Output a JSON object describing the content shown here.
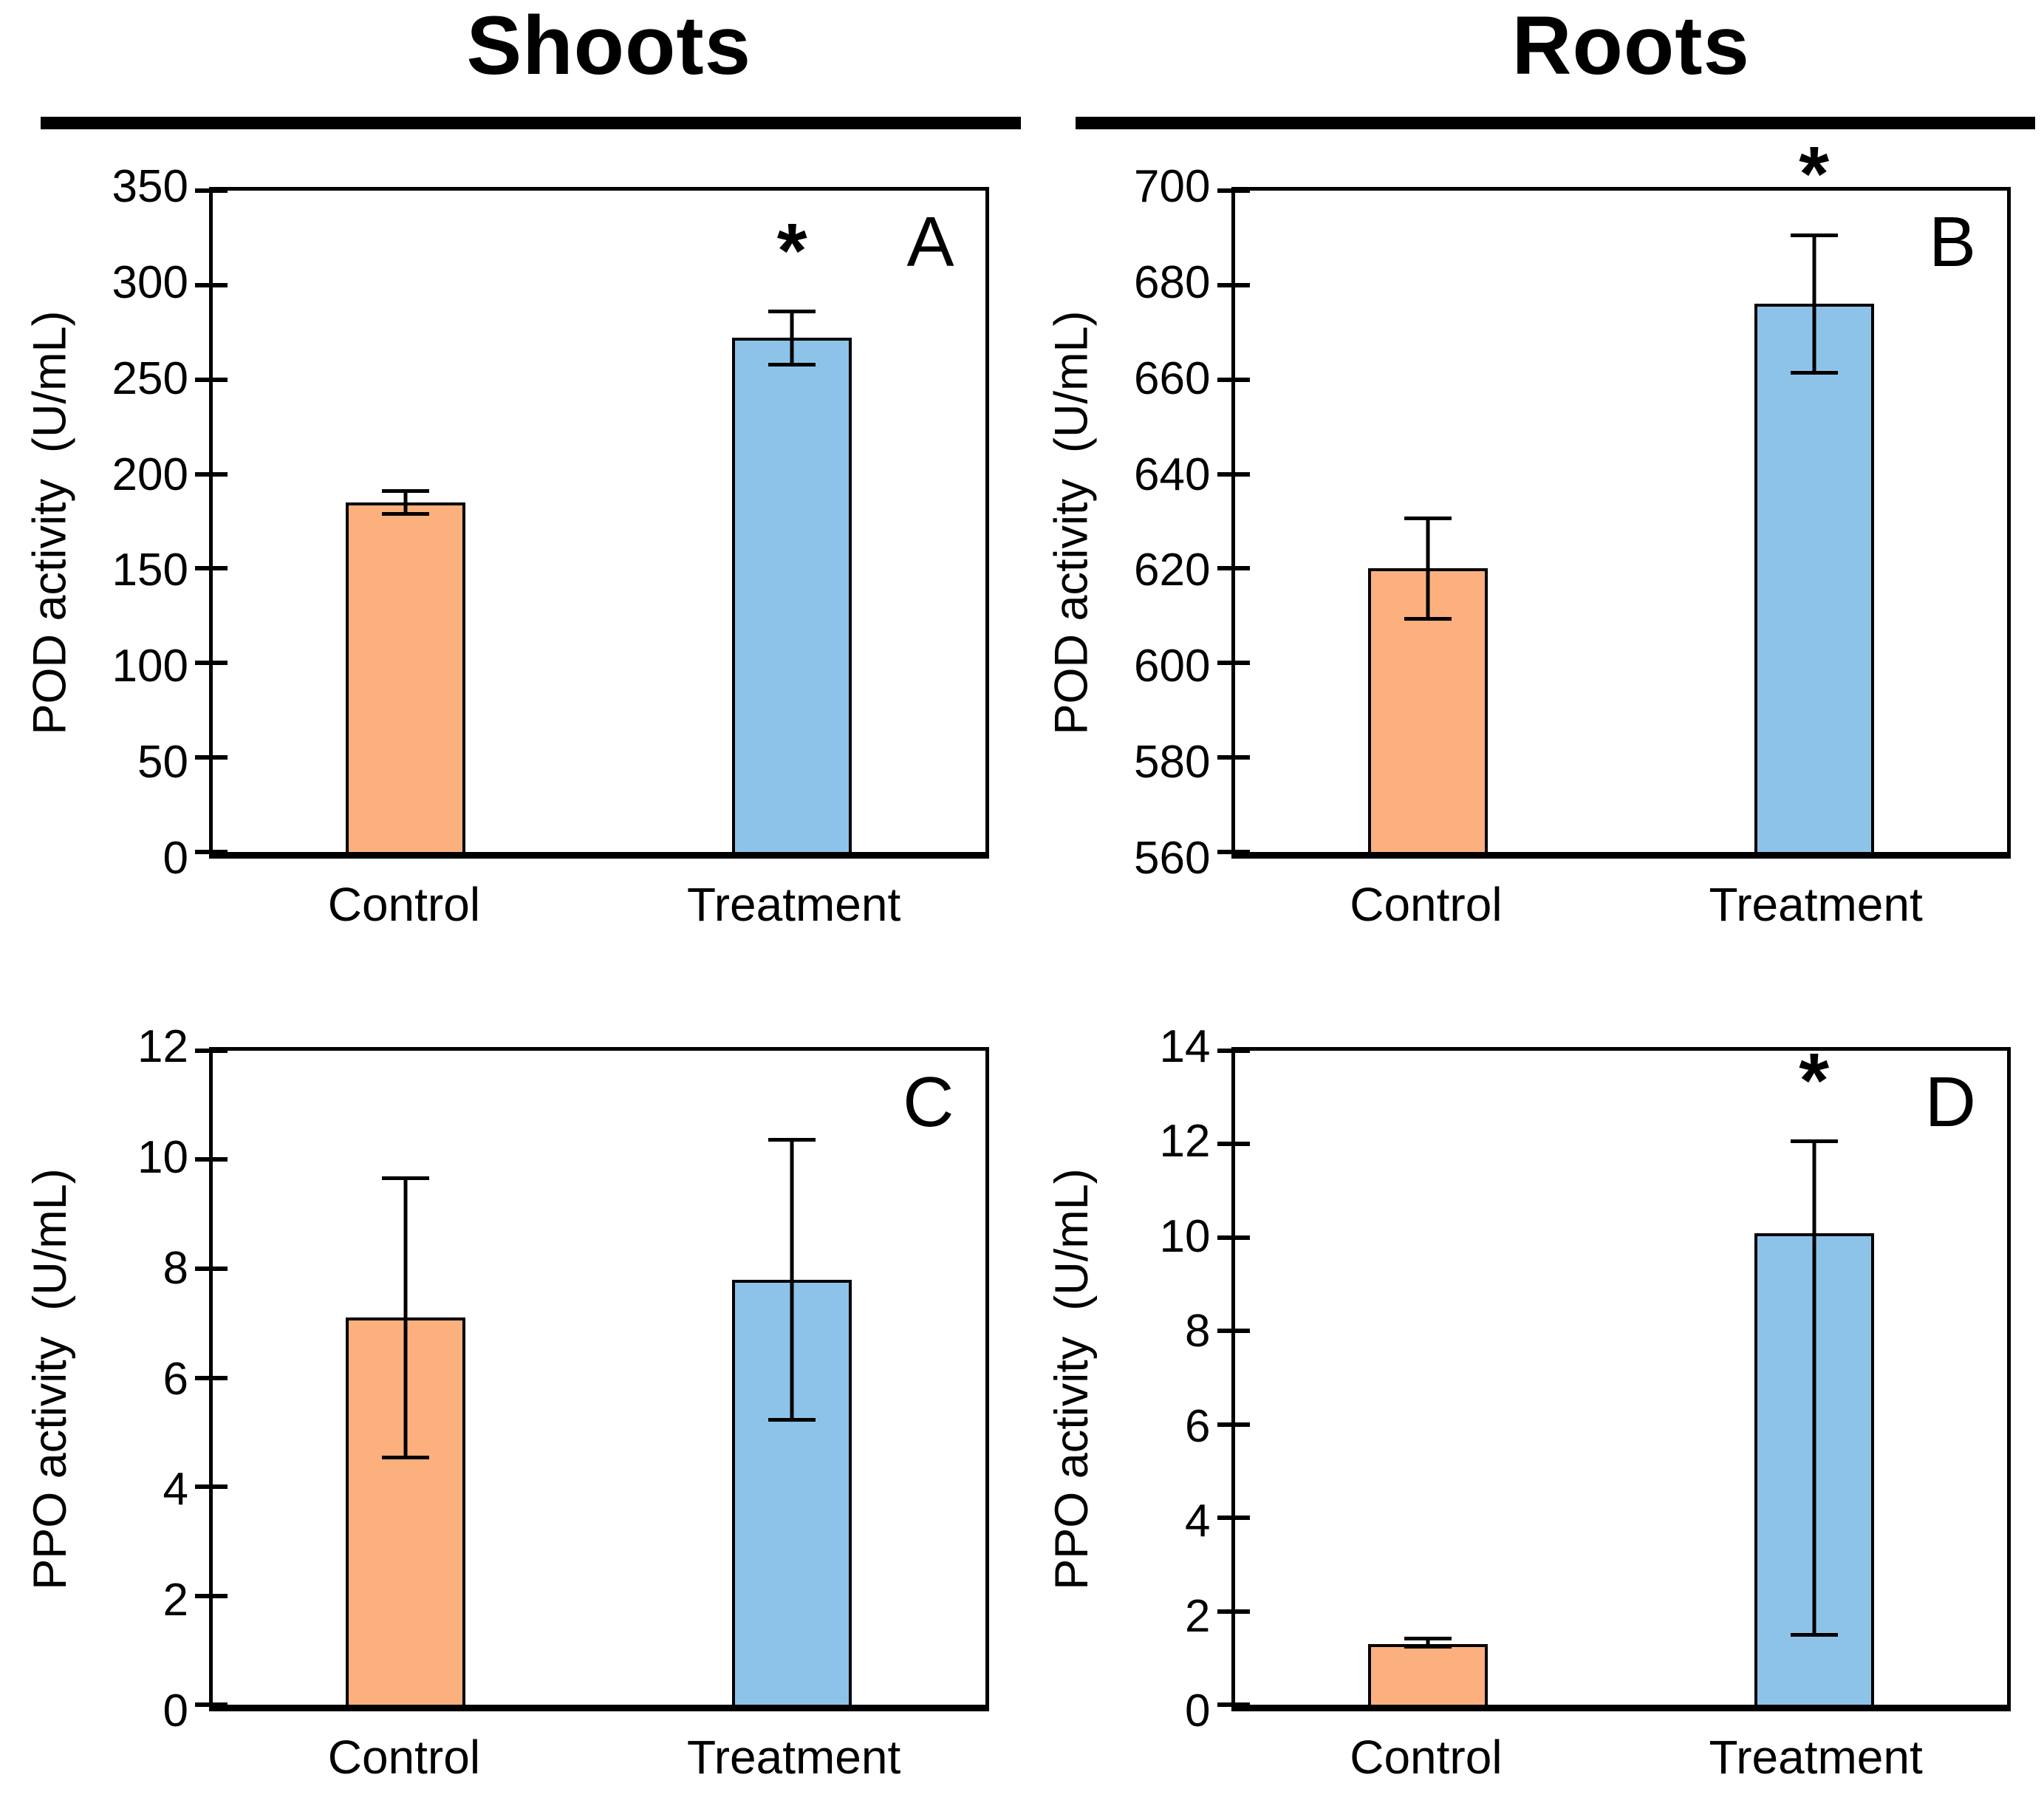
{
  "figure": {
    "columns": [
      {
        "title": "Shoots"
      },
      {
        "title": "Roots"
      }
    ],
    "colors": {
      "control": "#FBB07E",
      "treatment": "#8EC3E9",
      "bar_border": "#000000",
      "axis": "#000000"
    }
  },
  "chart_data": [
    {
      "type": "bar",
      "panel_label": "A",
      "column": "Shoots",
      "title": "",
      "xlabel": "",
      "ylabel": "POD activity  (U/mL)",
      "categories": [
        "Control",
        "Treatment"
      ],
      "values": [
        185,
        272
      ],
      "error_low": [
        178,
        257
      ],
      "error_high": [
        192,
        287
      ],
      "significance": [
        "",
        "*"
      ],
      "ylim": [
        0,
        350
      ],
      "yticks": [
        0,
        50,
        100,
        150,
        200,
        250,
        300,
        350
      ],
      "series_colors": [
        "control",
        "treatment"
      ],
      "grid": false,
      "legend": "none"
    },
    {
      "type": "bar",
      "panel_label": "B",
      "column": "Roots",
      "title": "",
      "xlabel": "",
      "ylabel": "POD activity  (U/mL)",
      "categories": [
        "Control",
        "Treatment"
      ],
      "values": [
        620,
        676
      ],
      "error_low": [
        609,
        661
      ],
      "error_high": [
        631,
        691
      ],
      "significance": [
        "",
        "*"
      ],
      "ylim": [
        560,
        700
      ],
      "yticks": [
        560,
        580,
        600,
        620,
        640,
        660,
        680,
        700
      ],
      "series_colors": [
        "control",
        "treatment"
      ],
      "grid": false,
      "legend": "none"
    },
    {
      "type": "bar",
      "panel_label": "C",
      "column": "Shoots",
      "title": "",
      "xlabel": "",
      "ylabel": "PPO activity  (U/mL)",
      "categories": [
        "Control",
        "Treatment"
      ],
      "values": [
        7.1,
        7.8
      ],
      "error_low": [
        4.5,
        5.2
      ],
      "error_high": [
        9.7,
        10.4
      ],
      "significance": [
        "",
        ""
      ],
      "ylim": [
        0,
        12
      ],
      "yticks": [
        0,
        2,
        4,
        6,
        8,
        10,
        12
      ],
      "series_colors": [
        "control",
        "treatment"
      ],
      "grid": false,
      "legend": "none"
    },
    {
      "type": "bar",
      "panel_label": "D",
      "column": "Roots",
      "title": "",
      "xlabel": "",
      "ylabel": "PPO activity  (U/mL)",
      "categories": [
        "Control",
        "Treatment"
      ],
      "values": [
        1.3,
        10.1
      ],
      "error_low": [
        1.2,
        1.45
      ],
      "error_high": [
        1.45,
        12.1
      ],
      "significance": [
        "",
        "*"
      ],
      "ylim": [
        0,
        14
      ],
      "yticks": [
        0,
        2,
        4,
        6,
        8,
        10,
        12,
        14
      ],
      "series_colors": [
        "control",
        "treatment"
      ],
      "grid": false,
      "legend": "none"
    }
  ]
}
